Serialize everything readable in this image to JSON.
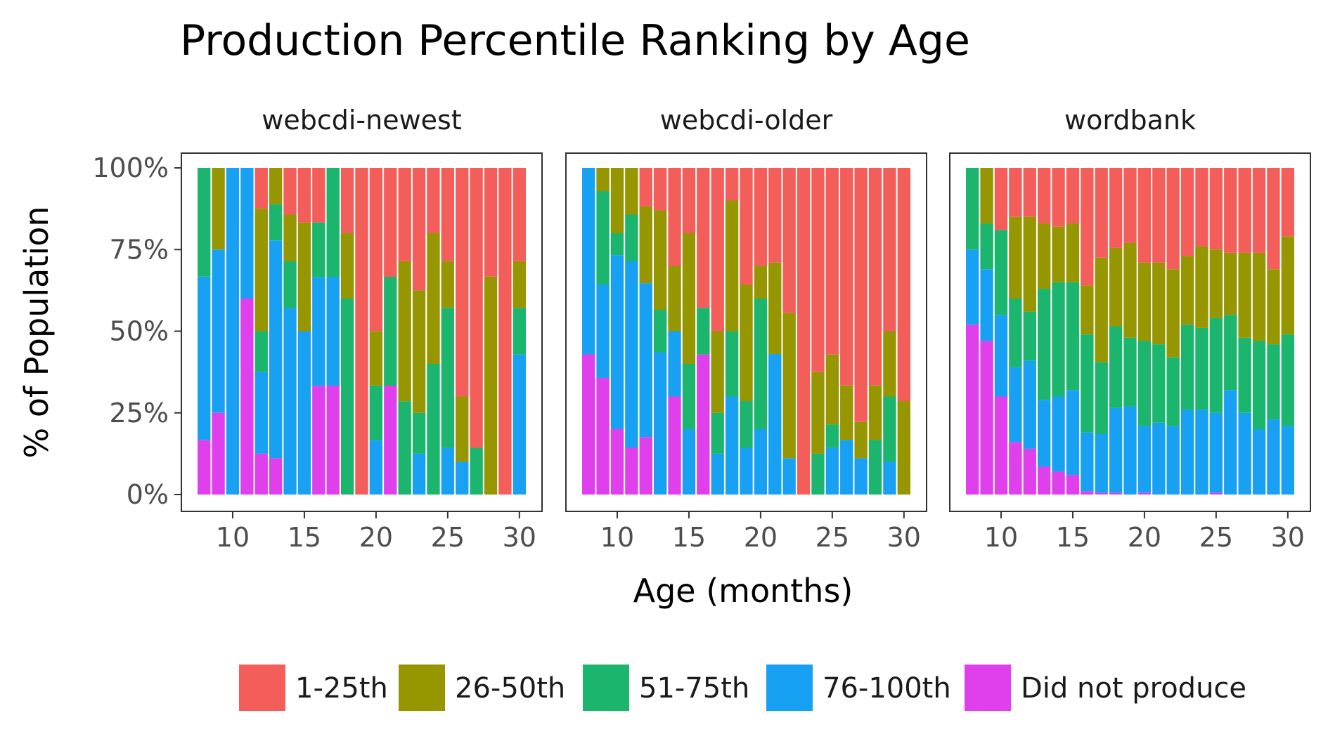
{
  "chart_data": {
    "type": "bar",
    "title": "Production Percentile Ranking by Age",
    "xlabel": "Age (months)",
    "ylabel": "% of Population",
    "stacked": true,
    "xlim": [
      7,
      31
    ],
    "ylim": [
      0,
      100
    ],
    "x_ticks": [
      10,
      15,
      20,
      25,
      30
    ],
    "y_ticks": [
      {
        "value": 0,
        "label": "0%"
      },
      {
        "value": 25,
        "label": "25%"
      },
      {
        "value": 50,
        "label": "50%"
      },
      {
        "value": 75,
        "label": "75%"
      },
      {
        "value": 100,
        "label": "100%"
      }
    ],
    "legend_position": "bottom",
    "categories": [
      {
        "name": "Did not produce",
        "color": "#E040EC"
      },
      {
        "name": "76-100th",
        "color": "#18A1F2"
      },
      {
        "name": "51-75th",
        "color": "#1BB56D"
      },
      {
        "name": "26-50th",
        "color": "#959600"
      },
      {
        "name": "1-25th",
        "color": "#F45E5A"
      }
    ],
    "legend": [
      "1-25th",
      "26-50th",
      "51-75th",
      "76-100th",
      "Did not produce"
    ],
    "panels": [
      {
        "name": "webcdi-newest",
        "bars": [
          {
            "age": 8,
            "values": [
              16.7,
              50,
              33.3,
              0,
              0
            ]
          },
          {
            "age": 9,
            "values": [
              25,
              50,
              0,
              25,
              0
            ]
          },
          {
            "age": 10,
            "values": [
              0,
              100,
              0,
              0,
              0
            ]
          },
          {
            "age": 11,
            "values": [
              60,
              40,
              0,
              0,
              0
            ]
          },
          {
            "age": 12,
            "values": [
              12.5,
              25,
              12.5,
              37.5,
              12.5
            ]
          },
          {
            "age": 13,
            "values": [
              11.1,
              66.7,
              11.1,
              11.1,
              0
            ]
          },
          {
            "age": 14,
            "values": [
              0,
              57.1,
              14.3,
              14.3,
              14.3
            ]
          },
          {
            "age": 15,
            "values": [
              0,
              50,
              0,
              33.3,
              16.7
            ]
          },
          {
            "age": 16,
            "values": [
              33.3,
              33.3,
              16.7,
              0,
              16.7
            ]
          },
          {
            "age": 17,
            "values": [
              33.3,
              33.3,
              33.3,
              0,
              0
            ]
          },
          {
            "age": 18,
            "values": [
              0,
              0,
              60,
              20,
              20
            ]
          },
          {
            "age": 19,
            "values": [
              0,
              0,
              0,
              0,
              100
            ]
          },
          {
            "age": 20,
            "values": [
              0,
              16.7,
              16.7,
              16.7,
              50
            ]
          },
          {
            "age": 21,
            "values": [
              33.3,
              0,
              33.3,
              0,
              33.3
            ]
          },
          {
            "age": 22,
            "values": [
              0,
              0,
              28.6,
              42.9,
              28.6
            ]
          },
          {
            "age": 23,
            "values": [
              0,
              12.5,
              12.5,
              37.5,
              37.5
            ]
          },
          {
            "age": 24,
            "values": [
              0,
              0,
              40,
              40,
              20
            ]
          },
          {
            "age": 25,
            "values": [
              0,
              14.3,
              42.9,
              14.3,
              28.6
            ]
          },
          {
            "age": 26,
            "values": [
              0,
              10,
              0,
              20,
              70
            ]
          },
          {
            "age": 27,
            "values": [
              0,
              0,
              14.3,
              0,
              85.7
            ]
          },
          {
            "age": 28,
            "values": [
              0,
              0,
              0,
              66.7,
              33.3
            ]
          },
          {
            "age": 29,
            "values": [
              0,
              0,
              0,
              0,
              100
            ]
          },
          {
            "age": 30,
            "values": [
              0,
              42.9,
              14.3,
              14.3,
              28.6
            ]
          }
        ]
      },
      {
        "name": "webcdi-older",
        "bars": [
          {
            "age": 8,
            "values": [
              42.9,
              57.1,
              0,
              0,
              0
            ]
          },
          {
            "age": 9,
            "values": [
              35.7,
              28.6,
              28.6,
              7.1,
              0
            ]
          },
          {
            "age": 10,
            "values": [
              20,
              53.3,
              6.7,
              20,
              0
            ]
          },
          {
            "age": 11,
            "values": [
              14.3,
              57.1,
              14.3,
              14.3,
              0
            ]
          },
          {
            "age": 12,
            "values": [
              17.6,
              47.1,
              0,
              23.5,
              11.8
            ]
          },
          {
            "age": 13,
            "values": [
              0,
              43.5,
              13,
              30.4,
              13
            ]
          },
          {
            "age": 14,
            "values": [
              30,
              20,
              0,
              20,
              30
            ]
          },
          {
            "age": 15,
            "values": [
              0,
              20,
              20,
              40,
              20
            ]
          },
          {
            "age": 16,
            "values": [
              42.9,
              0,
              14.3,
              0,
              42.9
            ]
          },
          {
            "age": 17,
            "values": [
              0,
              12.5,
              12.5,
              25,
              50
            ]
          },
          {
            "age": 18,
            "values": [
              0,
              30,
              20,
              40,
              10
            ]
          },
          {
            "age": 19,
            "values": [
              0,
              14.3,
              14.3,
              35.7,
              35.7
            ]
          },
          {
            "age": 20,
            "values": [
              0,
              20,
              40,
              10,
              30
            ]
          },
          {
            "age": 21,
            "values": [
              0,
              43,
              0,
              28,
              29
            ]
          },
          {
            "age": 22,
            "values": [
              0,
              11.1,
              0,
              44.4,
              44.4
            ]
          },
          {
            "age": 23,
            "values": [
              0,
              0,
              0,
              0,
              100
            ]
          },
          {
            "age": 24,
            "values": [
              0,
              0,
              12.5,
              25,
              62.5
            ]
          },
          {
            "age": 25,
            "values": [
              0,
              14.3,
              7.1,
              21.4,
              57.1
            ]
          },
          {
            "age": 26,
            "values": [
              0,
              16.7,
              0,
              16.7,
              66.7
            ]
          },
          {
            "age": 27,
            "values": [
              0,
              11.1,
              0,
              11.1,
              77.8
            ]
          },
          {
            "age": 28,
            "values": [
              0,
              0,
              16.7,
              16.7,
              66.7
            ]
          },
          {
            "age": 29,
            "values": [
              0,
              10,
              20,
              20,
              50
            ]
          },
          {
            "age": 30,
            "values": [
              0,
              0,
              0,
              28.6,
              71.4
            ]
          }
        ]
      },
      {
        "name": "wordbank",
        "bars": [
          {
            "age": 8,
            "values": [
              52,
              23,
              25,
              0,
              0
            ]
          },
          {
            "age": 9,
            "values": [
              47,
              22,
              14,
              17,
              0
            ]
          },
          {
            "age": 10,
            "values": [
              30,
              25,
              26,
              0,
              19
            ]
          },
          {
            "age": 11,
            "values": [
              16,
              23,
              21,
              25,
              15
            ]
          },
          {
            "age": 12,
            "values": [
              14,
              27,
              15,
              29,
              15
            ]
          },
          {
            "age": 13,
            "values": [
              8.5,
              20.5,
              34,
              20,
              17
            ]
          },
          {
            "age": 14,
            "values": [
              7,
              23,
              35,
              17,
              18
            ]
          },
          {
            "age": 15,
            "values": [
              6,
              26,
              33,
              18,
              17
            ]
          },
          {
            "age": 16,
            "values": [
              1,
              18,
              30,
              15,
              36
            ]
          },
          {
            "age": 17,
            "values": [
              0.5,
              18,
              22,
              32,
              27.5
            ]
          },
          {
            "age": 18,
            "values": [
              0.5,
              26,
              25,
              24,
              24.5
            ]
          },
          {
            "age": 19,
            "values": [
              0,
              27,
              21,
              29,
              23
            ]
          },
          {
            "age": 20,
            "values": [
              0.5,
              20.5,
              26,
              24,
              29
            ]
          },
          {
            "age": 21,
            "values": [
              0,
              22,
              24,
              25,
              29
            ]
          },
          {
            "age": 22,
            "values": [
              0,
              21,
              21,
              27,
              31
            ]
          },
          {
            "age": 23,
            "values": [
              0,
              26,
              26,
              21,
              27
            ]
          },
          {
            "age": 24,
            "values": [
              0,
              26,
              25,
              25,
              24
            ]
          },
          {
            "age": 25,
            "values": [
              0.5,
              24.5,
              29,
              21,
              25
            ]
          },
          {
            "age": 26,
            "values": [
              0,
              32,
              23,
              19,
              26
            ]
          },
          {
            "age": 27,
            "values": [
              0,
              25,
              23,
              26,
              26
            ]
          },
          {
            "age": 28,
            "values": [
              0,
              20,
              27,
              27,
              26
            ]
          },
          {
            "age": 29,
            "values": [
              0,
              23,
              23,
              23,
              31
            ]
          },
          {
            "age": 30,
            "values": [
              0,
              21,
              28,
              30,
              21
            ]
          }
        ]
      }
    ]
  }
}
